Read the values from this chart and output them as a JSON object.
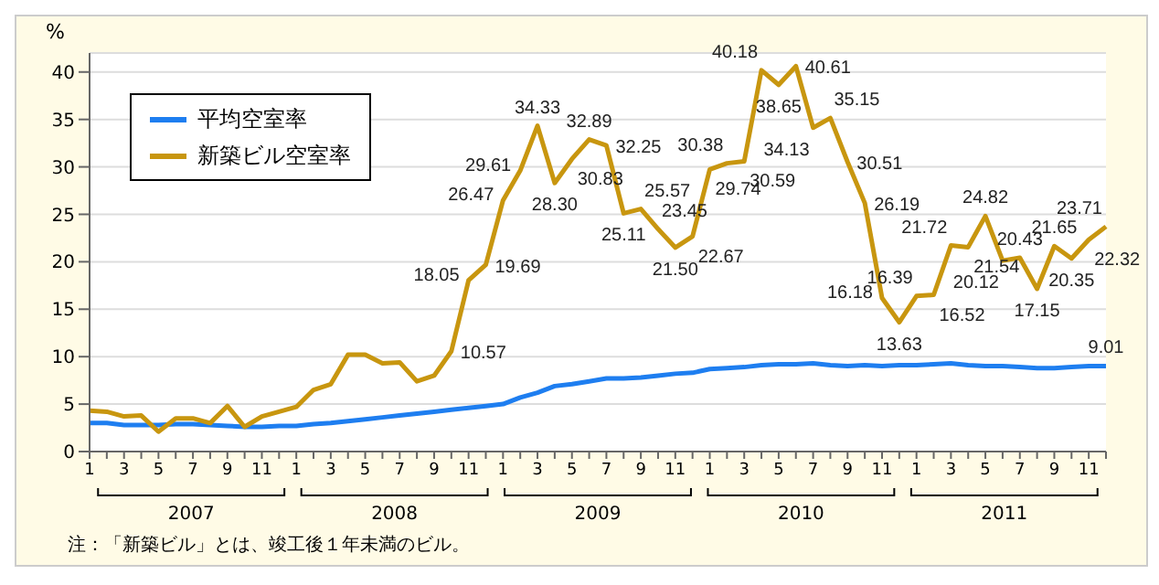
{
  "chart_data": {
    "type": "line",
    "ylabel": "%",
    "categories": [
      "1",
      null,
      "3",
      null,
      "5",
      null,
      "7",
      null,
      "9",
      null,
      "11",
      null,
      "1",
      null,
      "3",
      null,
      "5",
      null,
      "7",
      null,
      "9",
      null,
      "11",
      null,
      "1",
      null,
      "3",
      null,
      "5",
      null,
      "7",
      null,
      "9",
      null,
      "11",
      null,
      "1",
      null,
      "3",
      null,
      "5",
      null,
      "7",
      null,
      "9",
      null,
      "11",
      null,
      "1",
      null,
      "3",
      null,
      "5",
      null,
      "7",
      null,
      "9",
      null,
      "11",
      null
    ],
    "series": [
      {
        "name": "平均空室率",
        "color": "#1e7ef0",
        "values": [
          3.0,
          3.0,
          2.8,
          2.8,
          2.8,
          2.9,
          2.9,
          2.8,
          2.7,
          2.6,
          2.6,
          2.7,
          2.7,
          2.9,
          3.0,
          3.2,
          3.4,
          3.6,
          3.8,
          4.0,
          4.2,
          4.4,
          4.6,
          4.8,
          5.0,
          5.7,
          6.2,
          6.9,
          7.1,
          7.4,
          7.7,
          7.7,
          7.8,
          8.0,
          8.2,
          8.3,
          8.7,
          8.8,
          8.9,
          9.1,
          9.2,
          9.2,
          9.3,
          9.1,
          9.0,
          9.1,
          9.0,
          9.1,
          9.1,
          9.2,
          9.3,
          9.1,
          9.0,
          9.0,
          8.9,
          8.8,
          8.8,
          8.9,
          9.0,
          9.01
        ],
        "value_labels": [
          null,
          null,
          null,
          null,
          null,
          null,
          null,
          null,
          null,
          null,
          null,
          null,
          null,
          null,
          null,
          null,
          null,
          null,
          null,
          null,
          null,
          null,
          null,
          null,
          null,
          null,
          null,
          null,
          null,
          null,
          null,
          null,
          null,
          null,
          null,
          null,
          null,
          null,
          null,
          null,
          null,
          null,
          null,
          null,
          null,
          null,
          null,
          null,
          null,
          null,
          null,
          null,
          null,
          null,
          null,
          null,
          null,
          null,
          null,
          "9.01"
        ]
      },
      {
        "name": "新築ビル空室率",
        "color": "#c8960f",
        "values": [
          4.3,
          4.2,
          3.7,
          3.8,
          2.1,
          3.5,
          3.5,
          3.0,
          4.8,
          2.6,
          3.7,
          4.2,
          4.7,
          6.5,
          7.1,
          10.2,
          10.2,
          9.3,
          9.4,
          7.4,
          8.0,
          10.57,
          18.05,
          19.69,
          26.47,
          29.61,
          34.33,
          28.3,
          30.83,
          32.89,
          32.25,
          25.11,
          25.57,
          23.45,
          21.5,
          22.67,
          29.74,
          30.38,
          30.59,
          40.18,
          38.65,
          40.61,
          34.13,
          35.15,
          30.51,
          26.19,
          16.18,
          13.63,
          16.39,
          16.52,
          21.72,
          21.54,
          24.82,
          20.12,
          20.43,
          17.15,
          21.65,
          20.35,
          22.32,
          23.71
        ],
        "value_labels": [
          null,
          null,
          null,
          null,
          null,
          null,
          null,
          null,
          null,
          null,
          null,
          null,
          null,
          null,
          null,
          null,
          null,
          null,
          null,
          null,
          null,
          "10.57",
          "18.05",
          "19.69",
          "26.47",
          "29.61",
          "34.33",
          "28.30",
          "30.83",
          "32.89",
          "32.25",
          "25.11",
          "25.57",
          "23.45",
          "21.50",
          "22.67",
          "29.74",
          "30.38",
          "30.59",
          "40.18",
          "38.65",
          "40.61",
          "34.13",
          "35.15",
          "30.51",
          "26.19",
          "16.18",
          "13.63",
          "16.39",
          "16.52",
          "21.72",
          "21.54",
          "24.82",
          "20.12",
          "20.43",
          "17.15",
          "21.65",
          "20.35",
          "22.32",
          "23.71"
        ]
      }
    ],
    "ylim": [
      0,
      42
    ],
    "yticks": [
      0,
      5,
      10,
      15,
      20,
      25,
      30,
      35,
      40
    ],
    "grid": "y",
    "legend": "top left",
    "marker": "none",
    "line_style": "solid",
    "annotations": [
      "2007",
      "2008",
      "2009",
      "2010",
      "2011",
      "注：「新築ビル」とは、竣工後１年未満のビル。"
    ]
  }
}
